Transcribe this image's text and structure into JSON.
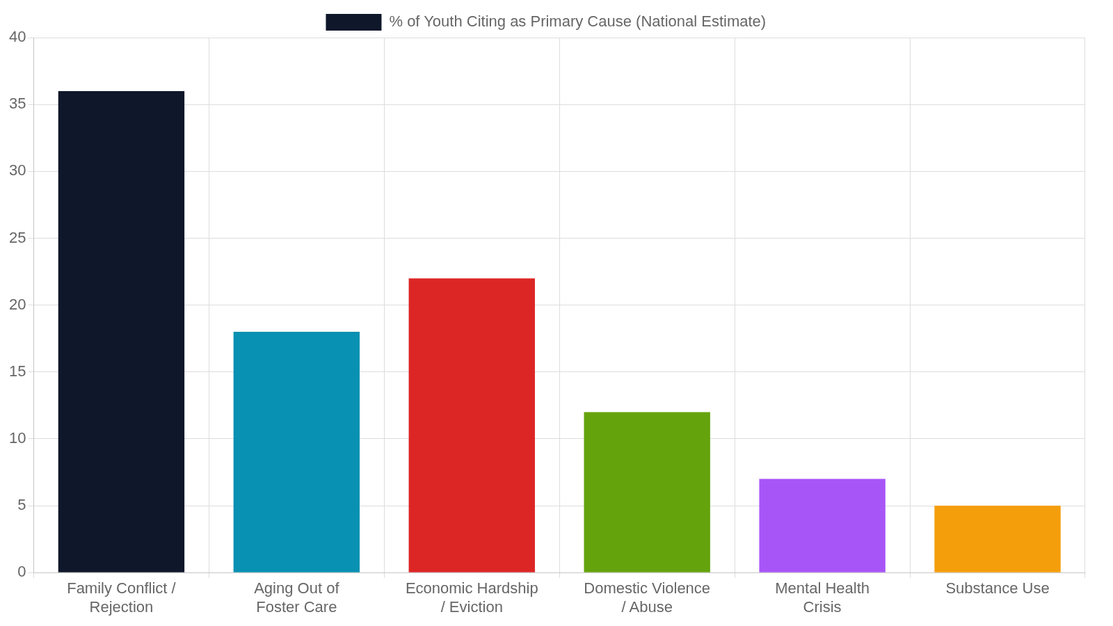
{
  "chart_data": {
    "type": "bar",
    "categories": [
      "Family Conflict / Rejection",
      "Aging Out of Foster Care",
      "Economic Hardship / Eviction",
      "Domestic Violence / Abuse",
      "Mental Health Crisis",
      "Substance Use"
    ],
    "series": [
      {
        "name": "% of Youth Citing as Primary Cause (National Estimate)",
        "values": [
          36,
          18,
          22,
          12,
          7,
          5
        ]
      }
    ],
    "colors": [
      "#0f172a",
      "#0891b2",
      "#dc2626",
      "#65a30d",
      "#a855f7",
      "#f59e0b"
    ],
    "ylim": [
      0,
      40
    ],
    "yticks": [
      0,
      5,
      10,
      15,
      20,
      25,
      30,
      35,
      40
    ],
    "grid": true,
    "legend": "top"
  }
}
